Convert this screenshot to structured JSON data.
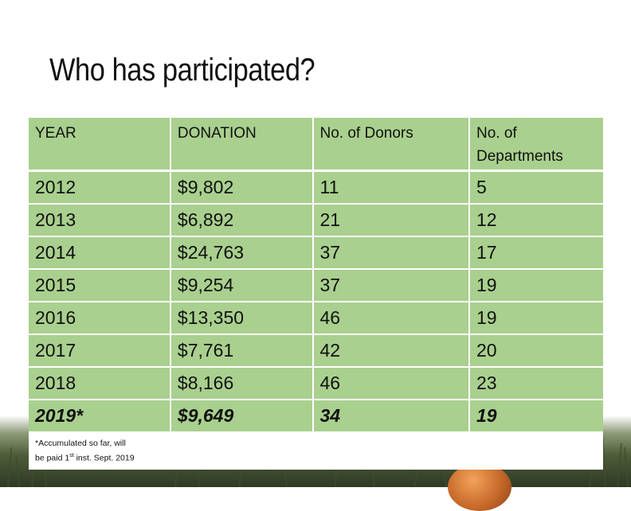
{
  "slide": {
    "title": "Who has participated?"
  },
  "table": {
    "headers": [
      "YEAR",
      "DONATION",
      "No. of Donors",
      "No. of Departments"
    ],
    "rows": [
      {
        "year": "2012",
        "donation": "$9,802",
        "donors": "11",
        "departments": "5"
      },
      {
        "year": "2013",
        "donation": "$6,892",
        "donors": "21",
        "departments": "12"
      },
      {
        "year": "2014",
        "donation": "$24,763",
        "donors": "37",
        "departments": "17"
      },
      {
        "year": "2015",
        "donation": "$9,254",
        "donors": "37",
        "departments": "19"
      },
      {
        "year": "2016",
        "donation": "$13,350",
        "donors": "46",
        "departments": "19"
      },
      {
        "year": "2017",
        "donation": "$7,761",
        "donors": "42",
        "departments": "20"
      },
      {
        "year": "2018",
        "donation": "$8,166",
        "donors": "46",
        "departments": "23"
      },
      {
        "year": "2019*",
        "donation": "$9,649",
        "donors": "34",
        "departments": "19"
      }
    ],
    "footnote": {
      "line1": "*Accumulated so far, will",
      "line2_prefix": "be paid 1",
      "line2_sup": "st",
      "line2_suffix": " inst. Sept. 2019"
    }
  },
  "colors": {
    "cell_green": "#a9d08e",
    "highlight_row": "2019*"
  }
}
